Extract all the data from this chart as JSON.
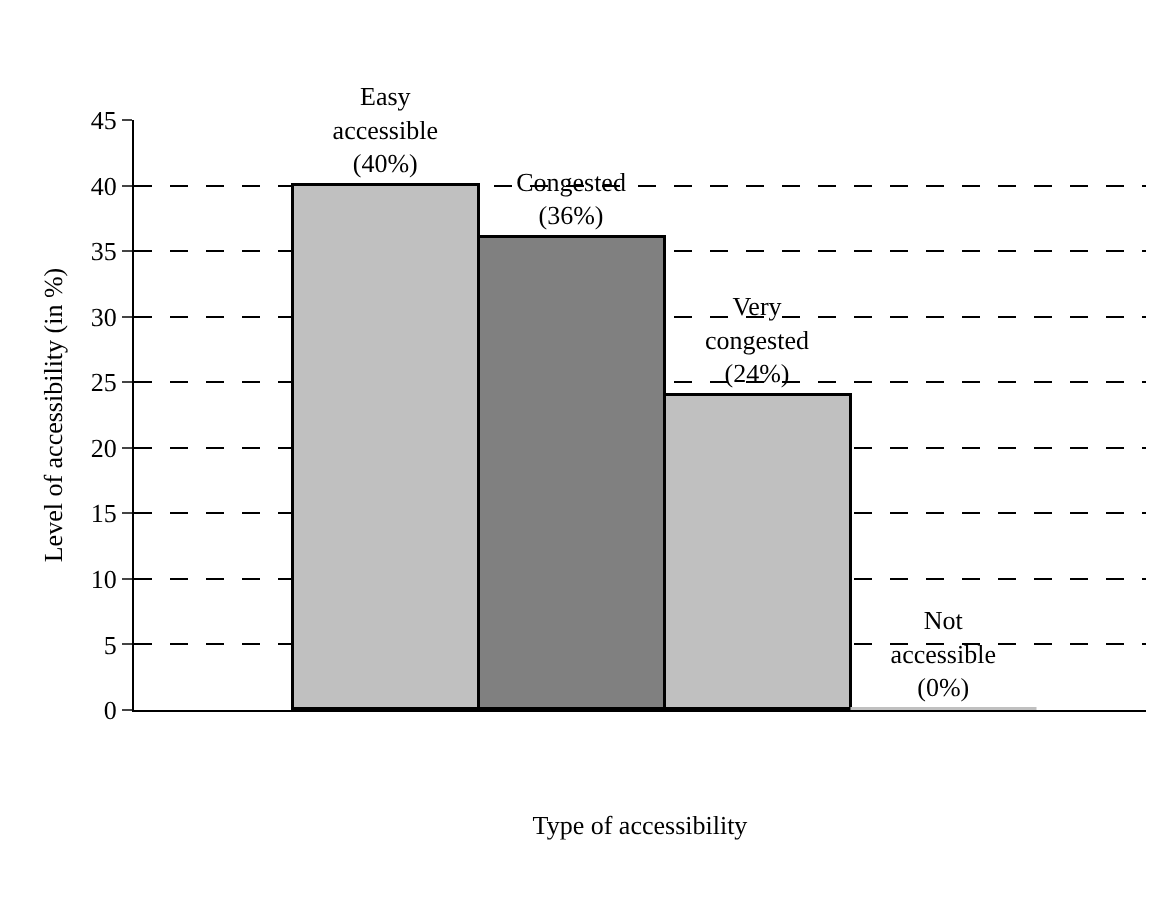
{
  "chart_data": {
    "type": "bar",
    "categories": [
      null,
      null,
      null,
      null
    ],
    "values": [
      40,
      36,
      24,
      0
    ],
    "colors": [
      "#c0c0c0",
      "#808080",
      "#c0c0c0",
      "#c0c0c0"
    ],
    "value_labels": [
      "Easy\naccessible\n(40%)",
      "Congested\n(36%)",
      "Very\ncongested\n(24%)",
      "Not\naccessible\n(0%)"
    ],
    "xlabel": "Type of accessibility",
    "ylabel": "Level of accessibility (in %)",
    "ylim": [
      0,
      45
    ],
    "yticks": [
      0,
      5,
      10,
      15,
      20,
      25,
      30,
      35,
      40,
      45
    ],
    "grid": "y",
    "legend": false
  }
}
